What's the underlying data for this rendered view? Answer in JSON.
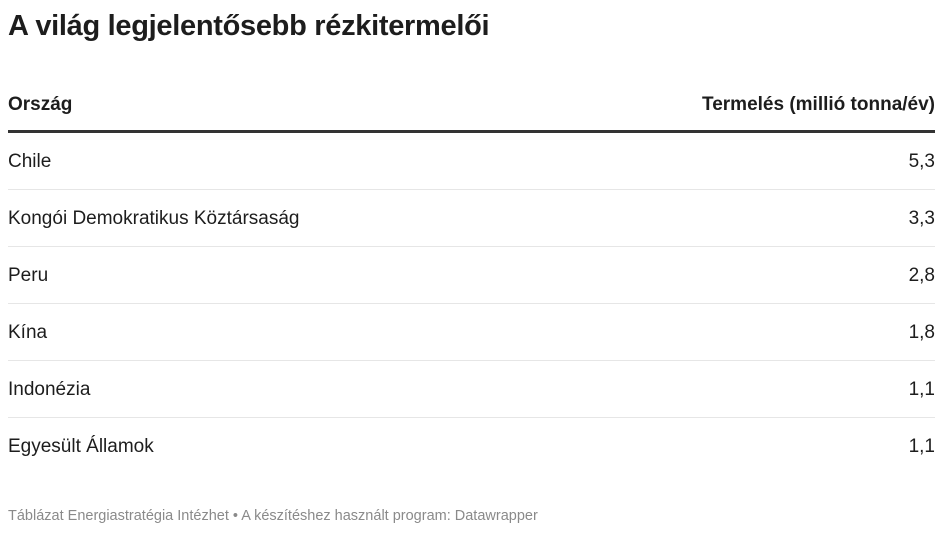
{
  "title": "A világ legjelentősebb rézkitermelői",
  "chart_data": {
    "type": "table",
    "title": "A világ legjelentősebb rézkitermelői",
    "columns": [
      "Ország",
      "Termelés (millió tonna/év)"
    ],
    "rows": [
      {
        "country": "Chile",
        "value": "5,3"
      },
      {
        "country": "Kongói Demokratikus Köztársaság",
        "value": "3,3"
      },
      {
        "country": "Peru",
        "value": "2,8"
      },
      {
        "country": "Kína",
        "value": "1,8"
      },
      {
        "country": "Indonézia",
        "value": "1,1"
      },
      {
        "country": "Egyesült Államok",
        "value": "1,1"
      }
    ]
  },
  "footer": "Táblázat Energiastratégia Intézhet • A készítéshez használt program: Datawrapper"
}
